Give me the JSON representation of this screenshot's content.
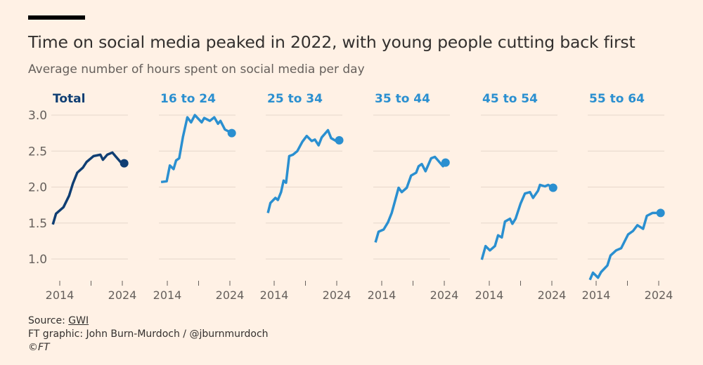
{
  "title": "Time on social media peaked in 2022, with young people cutting back first",
  "subtitle": "Average number of hours spent on social media per day",
  "footer": {
    "source_label": "Source: ",
    "source_link": "GWI",
    "credit": "FT graphic: John Burn-Murdoch / @jburnmurdoch",
    "copyright": "©FT"
  },
  "chart_data": {
    "type": "line",
    "layout": "small-multiples",
    "xlabel": "",
    "ylabel": "",
    "ylim": [
      0.7,
      3.1
    ],
    "yticks": [
      1.0,
      1.5,
      2.0,
      2.5,
      3.0
    ],
    "ytick_labels": [
      "1.0",
      "1.5",
      "2.0",
      "2.5",
      "3.0"
    ],
    "xticks": [
      2014,
      2019,
      2024
    ],
    "xtick_labels": [
      "2014",
      "",
      "2024"
    ],
    "xlim": [
      2012.8,
      2024.5
    ],
    "grid": true,
    "colors": {
      "total": "#0f3e73",
      "age_groups": "#2a8fd0"
    },
    "series": [
      {
        "name": "Total",
        "color": "#0f3e73",
        "x": [
          2012.9,
          2013.4,
          2014.6,
          2015.5,
          2016.1,
          2016.8,
          2017.7,
          2018.3,
          2019.4,
          2020.5,
          2020.9,
          2021.6,
          2022.4,
          2023.0,
          2023.7,
          2024.3
        ],
        "y": [
          1.48,
          1.63,
          1.72,
          1.88,
          2.05,
          2.2,
          2.27,
          2.35,
          2.43,
          2.45,
          2.38,
          2.45,
          2.48,
          2.42,
          2.35,
          2.33
        ]
      },
      {
        "name": "16 to 24",
        "color": "#2a8fd0",
        "x": [
          2013.0,
          2013.9,
          2014.4,
          2015.0,
          2015.4,
          2015.9,
          2016.5,
          2017.2,
          2017.8,
          2018.4,
          2019.5,
          2019.9,
          2020.8,
          2021.5,
          2022.1,
          2022.5,
          2023.2,
          2024.3
        ],
        "y": [
          2.07,
          2.08,
          2.3,
          2.25,
          2.37,
          2.4,
          2.7,
          2.97,
          2.9,
          3.0,
          2.9,
          2.96,
          2.92,
          2.97,
          2.88,
          2.92,
          2.8,
          2.75
        ]
      },
      {
        "name": "25 to 34",
        "color": "#2a8fd0",
        "x": [
          2013.0,
          2013.4,
          2014.2,
          2014.6,
          2015.1,
          2015.5,
          2015.9,
          2016.4,
          2017.0,
          2017.7,
          2018.5,
          2019.2,
          2020.0,
          2020.5,
          2021.1,
          2021.6,
          2022.6,
          2023.1,
          2023.9,
          2024.4
        ],
        "y": [
          1.64,
          1.78,
          1.85,
          1.82,
          1.93,
          2.09,
          2.06,
          2.43,
          2.45,
          2.5,
          2.63,
          2.71,
          2.64,
          2.66,
          2.58,
          2.69,
          2.79,
          2.68,
          2.64,
          2.65
        ]
      },
      {
        "name": "35 to 44",
        "color": "#2a8fd0",
        "x": [
          2013.0,
          2013.5,
          2014.3,
          2015.0,
          2015.6,
          2016.1,
          2016.7,
          2017.2,
          2018.0,
          2018.7,
          2019.5,
          2019.9,
          2020.4,
          2021.0,
          2021.9,
          2022.5,
          2023.0,
          2023.8,
          2024.2
        ],
        "y": [
          1.23,
          1.38,
          1.41,
          1.51,
          1.64,
          1.8,
          1.99,
          1.93,
          1.99,
          2.16,
          2.2,
          2.29,
          2.32,
          2.22,
          2.4,
          2.42,
          2.37,
          2.29,
          2.34
        ]
      },
      {
        "name": "45 to 54",
        "color": "#2a8fd0",
        "x": [
          2012.8,
          2013.4,
          2014.1,
          2014.9,
          2015.4,
          2016.0,
          2016.5,
          2017.3,
          2017.7,
          2018.2,
          2019.0,
          2019.7,
          2020.5,
          2021.0,
          2021.8,
          2022.1,
          2022.9,
          2023.4,
          2024.2
        ],
        "y": [
          0.99,
          1.18,
          1.12,
          1.18,
          1.33,
          1.3,
          1.52,
          1.56,
          1.49,
          1.56,
          1.77,
          1.91,
          1.93,
          1.85,
          1.95,
          2.03,
          2.01,
          2.03,
          1.99
        ]
      },
      {
        "name": "55 to 64",
        "color": "#2a8fd0",
        "x": [
          2013.0,
          2013.5,
          2014.3,
          2014.8,
          2015.8,
          2016.3,
          2017.2,
          2018.0,
          2019.1,
          2019.9,
          2020.6,
          2021.5,
          2022.1,
          2023.0,
          2024.3
        ],
        "y": [
          0.71,
          0.81,
          0.74,
          0.82,
          0.91,
          1.05,
          1.12,
          1.15,
          1.34,
          1.39,
          1.47,
          1.42,
          1.6,
          1.64,
          1.64
        ]
      }
    ]
  }
}
